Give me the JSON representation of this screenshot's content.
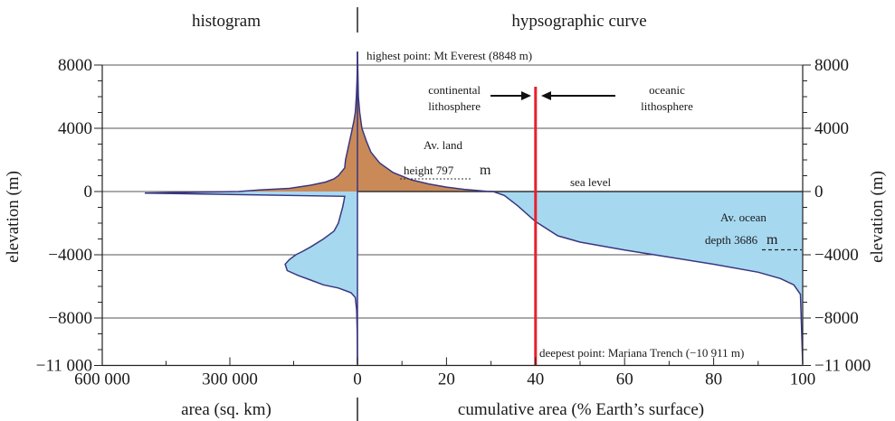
{
  "chart_data": {
    "type": "area",
    "headers": {
      "left": "histogram",
      "right": "hypsographic curve"
    },
    "y_axis": {
      "label": "elevation (m)",
      "ticks": [
        8000,
        4000,
        0,
        -4000,
        -8000,
        -11000
      ],
      "tick_labels": [
        "8000",
        "4000",
        "0",
        "−4000",
        "−8000",
        "−11 000"
      ],
      "range": [
        -11000,
        8000
      ]
    },
    "x_left": {
      "label": "area (sq. km)",
      "ticks": [
        600000,
        300000,
        0
      ],
      "tick_labels": [
        "600 000",
        "300 000",
        "0"
      ],
      "range": [
        600000,
        0
      ]
    },
    "x_right": {
      "label": "cumulative area (% Earth’s surface)",
      "ticks": [
        20,
        40,
        60,
        80,
        100
      ],
      "tick_labels": [
        "20",
        "40",
        "60",
        "80",
        "100"
      ],
      "range": [
        0,
        100
      ]
    },
    "histogram": {
      "elevation": [
        8848,
        8000,
        7000,
        6000,
        5000,
        4500,
        4000,
        3500,
        3000,
        2500,
        2000,
        1500,
        1000,
        800,
        600,
        400,
        200,
        100,
        0,
        -100,
        -300,
        -600,
        -1000,
        -1500,
        -2000,
        -2500,
        -3000,
        -3500,
        -3800,
        -4000,
        -4300,
        -4600,
        -5000,
        -5300,
        -5600,
        -5900,
        -6100,
        -6400,
        -6700,
        -7500,
        -9000,
        -10911
      ],
      "area": [
        0,
        200,
        1000,
        2500,
        5000,
        8000,
        12000,
        16000,
        20000,
        24000,
        28000,
        30000,
        45000,
        55000,
        75000,
        110000,
        160000,
        230000,
        280000,
        500000,
        30000,
        32000,
        35000,
        40000,
        45000,
        55000,
        80000,
        110000,
        130000,
        145000,
        160000,
        170000,
        165000,
        140000,
        110000,
        80000,
        45000,
        15000,
        5000,
        2000,
        500,
        0
      ]
    },
    "hypsographic_curve": {
      "cumulative_percent": [
        0,
        0.2,
        0.5,
        1,
        2,
        3,
        5,
        8,
        12,
        16,
        20,
        24,
        27,
        29,
        30.5,
        33,
        36,
        40,
        45,
        50,
        60,
        70,
        80,
        90,
        95,
        98,
        99.5,
        100
      ],
      "elevation": [
        8848,
        6000,
        5000,
        4000,
        3200,
        2500,
        1800,
        1200,
        750,
        480,
        280,
        140,
        60,
        20,
        0,
        -250,
        -900,
        -1900,
        -2800,
        -3200,
        -3700,
        -4150,
        -4600,
        -5100,
        -5500,
        -5900,
        -6500,
        -10911
      ]
    },
    "annotations": {
      "highest": "highest point: Mt Everest (8848 m)",
      "deepest": "deepest point: Mariana Trench (−10 911 m)",
      "continental": [
        "continental",
        "lithosphere"
      ],
      "oceanic": [
        "oceanic",
        "lithosphere"
      ],
      "sea_level": "sea level",
      "av_land": [
        "Av. land",
        "height 797"
      ],
      "av_land_value": 797,
      "av_ocean": [
        "Av. ocean",
        "depth 3686"
      ],
      "av_ocean_value": -3686,
      "unit_m": "m",
      "boundary_percent": 40
    },
    "colors": {
      "land": "#c98a58",
      "ocean": "#a6d8f0",
      "curve": "#3a3680",
      "boundary": "#e8202a"
    }
  }
}
